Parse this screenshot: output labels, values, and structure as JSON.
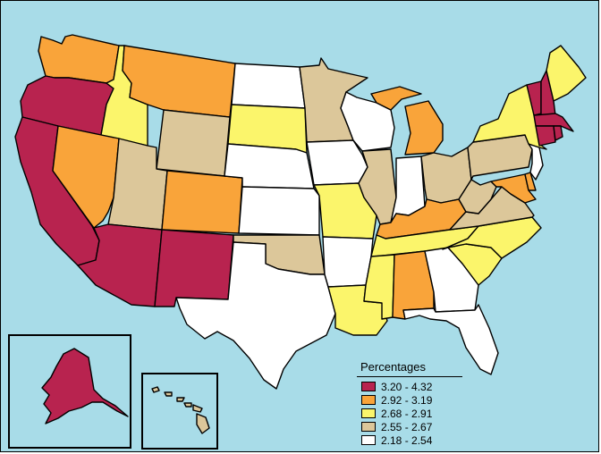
{
  "legend": {
    "title": "Percentages",
    "items": [
      {
        "label": "3.20 - 4.32",
        "color": "#b8234f"
      },
      {
        "label": "2.92 - 3.19",
        "color": "#f9a43a"
      },
      {
        "label": "2.68 - 2.91",
        "color": "#fbf56b"
      },
      {
        "label": "2.55 - 2.67",
        "color": "#dcc79a"
      },
      {
        "label": "2.18 - 2.54",
        "color": "#ffffff"
      }
    ]
  },
  "states": {
    "WA": 1,
    "OR": 0,
    "CA": 0,
    "ID": 2,
    "NV": 1,
    "MT": 1,
    "WY": 3,
    "UT": 3,
    "AZ": 0,
    "CO": 1,
    "NM": 0,
    "ND": 4,
    "SD": 2,
    "NE": 4,
    "KS": 4,
    "OK": 3,
    "TX": 4,
    "MN": 3,
    "IA": 4,
    "MO": 2,
    "AR": 4,
    "LA": 2,
    "WI": 4,
    "IL": 3,
    "MI": 1,
    "IN": 4,
    "OH": 3,
    "KY": 1,
    "TN": 2,
    "MS": 2,
    "AL": 1,
    "GA": 4,
    "FL": 4,
    "SC": 2,
    "NC": 2,
    "VA": 3,
    "WV": 3,
    "PA": 3,
    "NY": 2,
    "VT": 0,
    "NH": 0,
    "ME": 2,
    "MA": 0,
    "CT": 0,
    "RI": 0,
    "NJ": 4,
    "DE": 1,
    "MD": 1,
    "AK": 0,
    "HI": 3
  },
  "colors": {
    "water": "#a8dce8",
    "border": "#000000"
  }
}
